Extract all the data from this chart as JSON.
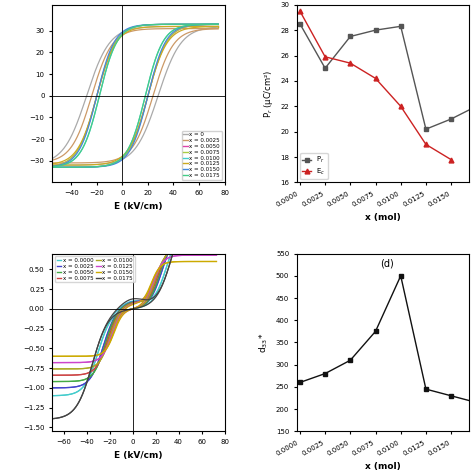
{
  "subplot_b": {
    "xlabel": "x (mol)",
    "ylabel": "P$_r$ (μC/cm²)",
    "xlim": [
      -0.0003,
      0.0168
    ],
    "ylim": [
      16,
      30
    ],
    "yticks": [
      16,
      18,
      20,
      22,
      24,
      26,
      28,
      30
    ],
    "Pr_x": [
      0.0,
      0.0025,
      0.005,
      0.0075,
      0.01,
      0.0125,
      0.015,
      0.0175
    ],
    "Pr_y": [
      28.5,
      25.0,
      27.5,
      28.0,
      28.3,
      20.2,
      21.0,
      22.0
    ],
    "Ec_x": [
      0.0,
      0.0025,
      0.005,
      0.0075,
      0.01,
      0.0125,
      0.015
    ],
    "Ec_y": [
      29.5,
      25.9,
      25.4,
      24.2,
      22.0,
      19.0,
      17.8
    ],
    "Pr_color": "#555555",
    "Ec_color": "#cc2222",
    "Pr_marker": "s",
    "Ec_marker": "^",
    "xticks": [
      0.0,
      0.0025,
      0.005,
      0.0075,
      0.01,
      0.0125,
      0.015
    ]
  },
  "subplot_d": {
    "title": "(d)",
    "xlabel": "x (mol)",
    "ylabel": "d$_{33}$*",
    "xlim": [
      -0.0003,
      0.0168
    ],
    "ylim": [
      150,
      550
    ],
    "yticks": [
      150,
      200,
      250,
      300,
      350,
      400,
      450,
      500,
      550
    ],
    "x": [
      0.0,
      0.0025,
      0.005,
      0.0075,
      0.01,
      0.0125,
      0.015,
      0.0175
    ],
    "y": [
      260,
      280,
      310,
      375,
      500,
      245,
      230,
      215
    ],
    "color": "#111111",
    "marker": "s",
    "xticks": [
      0.0,
      0.0025,
      0.005,
      0.0075,
      0.01,
      0.0125,
      0.015
    ]
  },
  "hysteresis_loops": [
    {
      "label": "x = 0",
      "Psat": 32,
      "Ec": 28,
      "k": 18,
      "color": "#aaaaaa"
    },
    {
      "label": "x = 0.0025",
      "Psat": 31,
      "Ec": 24,
      "k": 16,
      "color": "#cc9966"
    },
    {
      "label": "x = 0.0050",
      "Psat": 33,
      "Ec": 20,
      "k": 15,
      "color": "#dd44aa"
    },
    {
      "label": "x = 0.0075",
      "Psat": 33,
      "Ec": 20,
      "k": 15,
      "color": "#aacc44"
    },
    {
      "label": "x = 0.0100",
      "Psat": 33,
      "Ec": 18,
      "k": 14,
      "color": "#44cccc"
    },
    {
      "label": "x = 0.0125",
      "Psat": 32,
      "Ec": 20,
      "k": 15,
      "color": "#ccaa22"
    },
    {
      "label": "x = 0.0150",
      "Psat": 33,
      "Ec": 20,
      "k": 14,
      "color": "#4488dd"
    },
    {
      "label": "x = 0.0175",
      "Psat": 33,
      "Ec": 18,
      "k": 14,
      "color": "#44cc88"
    }
  ],
  "butterfly_loops": [
    {
      "label": "x = 0.0000",
      "amp": 0.55,
      "Ec": 30,
      "k": 12,
      "color": "#44cccc"
    },
    {
      "label": "x = 0.0025",
      "amp": 0.5,
      "Ec": 26,
      "k": 11,
      "color": "#4444cc"
    },
    {
      "label": "x = 0.0050",
      "amp": 0.46,
      "Ec": 24,
      "k": 10,
      "color": "#44aa44"
    },
    {
      "label": "x = 0.0075",
      "amp": 0.42,
      "Ec": 22,
      "k": 10,
      "color": "#cc4444"
    },
    {
      "label": "x = 0.0100",
      "amp": 0.38,
      "Ec": 20,
      "k": 9,
      "color": "#aaaa22"
    },
    {
      "label": "x = 0.0125",
      "amp": 0.34,
      "Ec": 18,
      "k": 9,
      "color": "#cc44cc"
    },
    {
      "label": "x = 0.0150",
      "amp": 0.3,
      "Ec": 16,
      "k": 8,
      "color": "#ccaa00"
    },
    {
      "label": "x = 0.0175",
      "amp": 0.7,
      "Ec": 35,
      "k": 14,
      "color": "#444444"
    }
  ]
}
